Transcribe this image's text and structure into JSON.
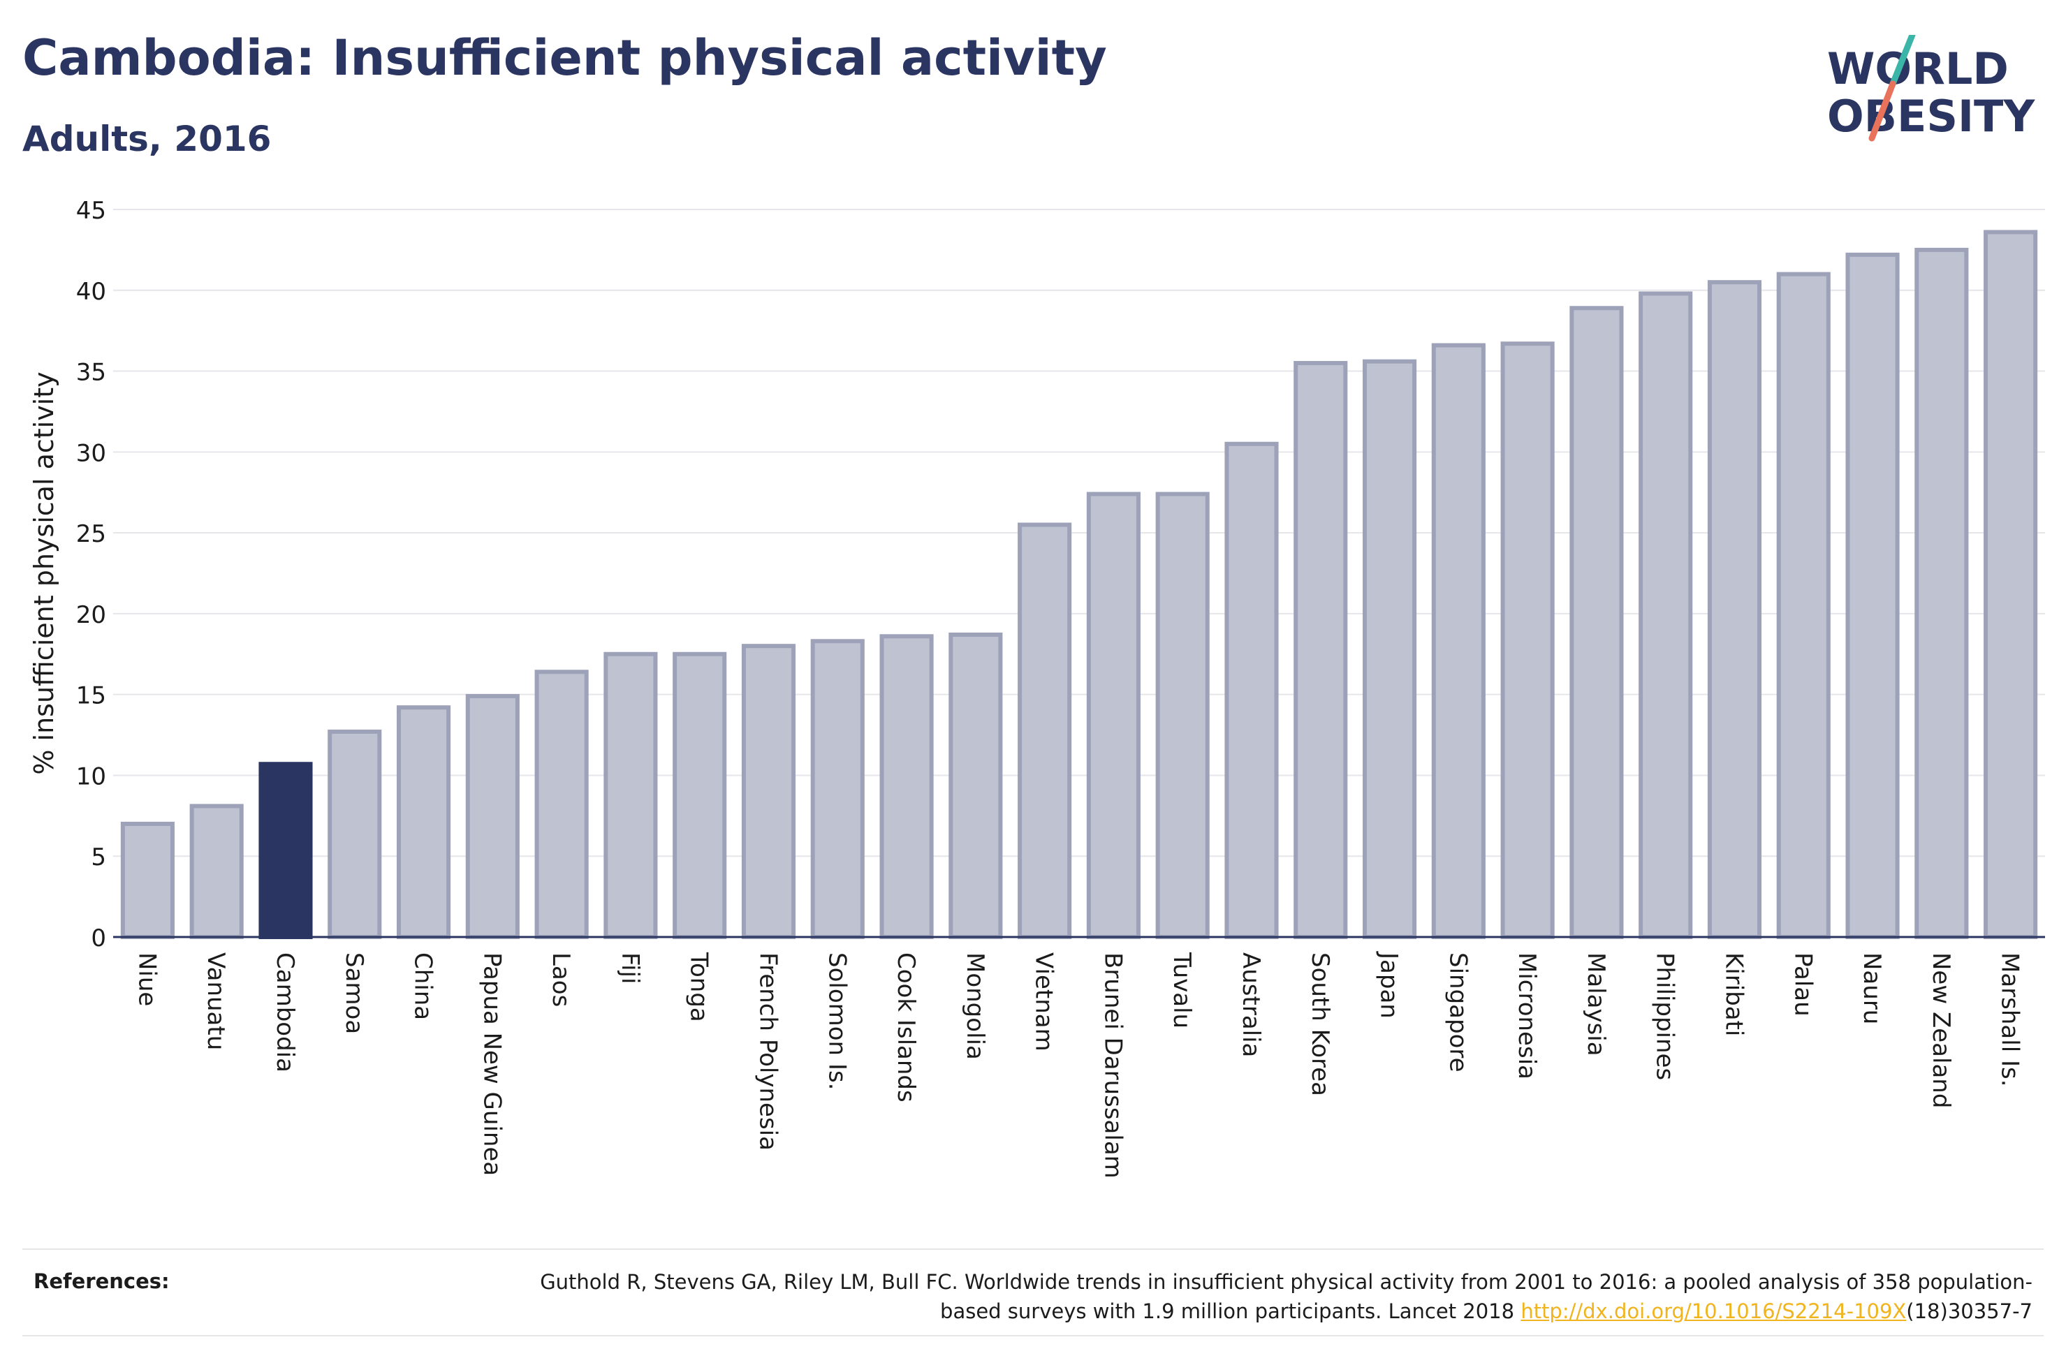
{
  "header": {
    "title": "Cambodia: Insufficient physical activity",
    "subtitle": "Adults, 2016"
  },
  "logo": {
    "line1": "WORLD",
    "line2": "OBESITY",
    "colors": {
      "text": "#2b3561",
      "slash_top": "#3ab5a8",
      "slash_bottom": "#e8735a"
    }
  },
  "chart_data": {
    "type": "bar",
    "ylabel": "% insufficient physical activity",
    "xlabel": "",
    "ylim": [
      0,
      45
    ],
    "yticks": [
      0,
      5,
      10,
      15,
      20,
      25,
      30,
      35,
      40,
      45
    ],
    "grid": true,
    "highlight": "Cambodia",
    "colors": {
      "bar": "#bfc2d0",
      "bar_edge": "#9da2b9",
      "highlight": "#2b3561",
      "grid": "#e6e6ea",
      "axis": "#2b3561"
    },
    "categories": [
      "Niue",
      "Vanuatu",
      "Cambodia",
      "Samoa",
      "China",
      "Papua New Guinea",
      "Laos",
      "Fiji",
      "Tonga",
      "French Polynesia",
      "Solomon Is.",
      "Cook Islands",
      "Mongolia",
      "Vietnam",
      "Brunei Darussalam",
      "Tuvalu",
      "Australia",
      "South Korea",
      "Japan",
      "Singapore",
      "Micronesia",
      "Malaysia",
      "Philippines",
      "Kiribati",
      "Palau",
      "Nauru",
      "New Zealand",
      "Marshall Is."
    ],
    "values": [
      7.0,
      8.1,
      10.7,
      12.7,
      14.2,
      14.9,
      16.4,
      17.5,
      17.5,
      18.0,
      18.3,
      18.6,
      18.7,
      25.5,
      27.4,
      27.4,
      30.5,
      35.5,
      35.6,
      36.6,
      36.7,
      38.9,
      39.8,
      40.5,
      41.0,
      42.2,
      42.5,
      43.6
    ]
  },
  "references": {
    "label": "References:",
    "text_before": "Guthold R, Stevens GA, Riley LM, Bull FC. Worldwide trends in insufficient physical activity from 2001 to 2016: a pooled analysis of 358 population-based surveys with 1.9 million participants. Lancet 2018 ",
    "link": "http://dx.doi.org/10.1016/S2214-109X",
    "text_after": "(18)30357-7"
  }
}
